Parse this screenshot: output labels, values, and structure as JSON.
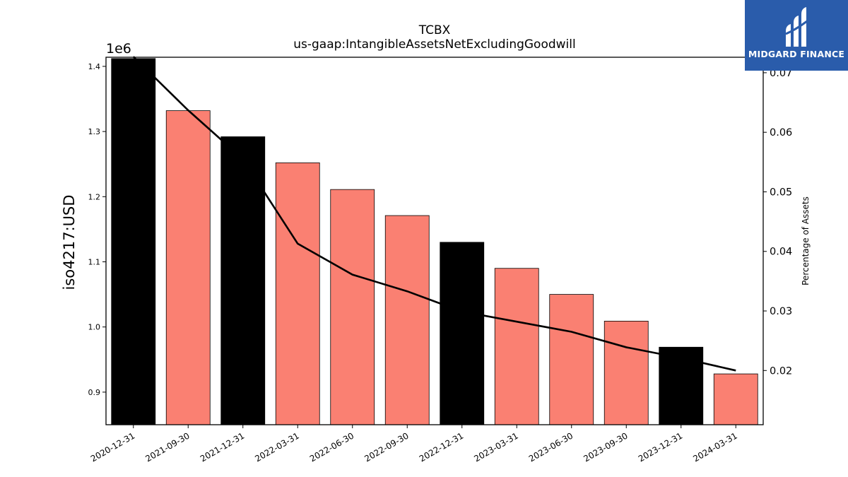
{
  "chart_data": {
    "type": "bar",
    "title": "TCBX",
    "subtitle": "us-gaap:IntangibleAssetsNetExcludingGoodwill",
    "ylabel": "iso4217:USD",
    "y2label": "Percentage of Assets",
    "y_offset_label": "1e6",
    "categories": [
      "2020-12-31",
      "2021-09-30",
      "2021-12-31",
      "2022-03-31",
      "2022-06-30",
      "2022-09-30",
      "2022-12-31",
      "2023-03-31",
      "2023-06-30",
      "2023-09-30",
      "2023-12-31",
      "2024-03-31"
    ],
    "series": [
      {
        "type": "bar",
        "values": [
          1.412,
          1.332,
          1.292,
          1.252,
          1.211,
          1.171,
          1.13,
          1.09,
          1.05,
          1.009,
          0.969,
          0.928
        ],
        "colors": [
          "#000000",
          "#fa8072",
          "#000000",
          "#fa8072",
          "#fa8072",
          "#fa8072",
          "#000000",
          "#fa8072",
          "#fa8072",
          "#fa8072",
          "#000000",
          "#fa8072"
        ]
      },
      {
        "type": "line",
        "axis": "right",
        "values": [
          0.0727,
          0.0637,
          0.0555,
          0.0413,
          0.0361,
          0.0333,
          0.0299,
          0.0282,
          0.0265,
          0.0239,
          0.0221,
          0.02
        ],
        "color": "#000000"
      }
    ],
    "ylim": [
      0.85,
      1.414
    ],
    "y_ticks": [
      "0.9",
      "1.0",
      "1.1",
      "1.2",
      "1.3",
      "1.4"
    ],
    "y2lim": [
      0.0109,
      0.0726
    ],
    "y2_ticks": [
      "0.02",
      "0.03",
      "0.04",
      "0.05",
      "0.06",
      "0.07"
    ],
    "grid": false
  },
  "logo": {
    "text": "MIDGARD FINANCE"
  }
}
